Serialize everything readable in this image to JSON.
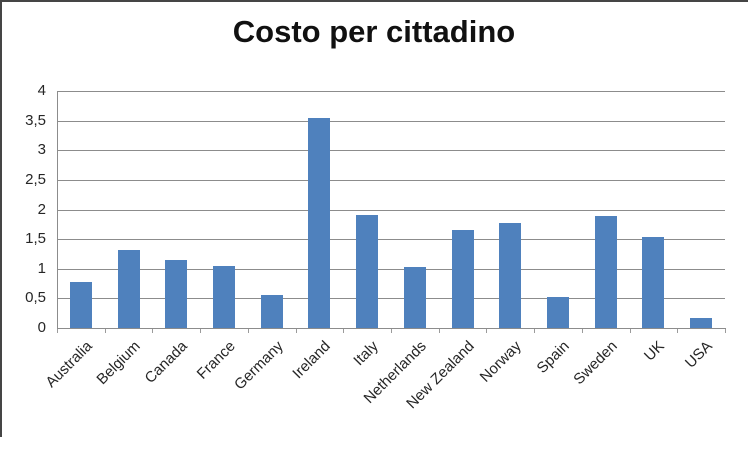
{
  "chart_data": {
    "type": "bar",
    "title": "Costo per cittadino",
    "xlabel": "",
    "ylabel": "",
    "categories": [
      "Australia",
      "Belgium",
      "Canada",
      "France",
      "Germany",
      "Ireland",
      "Italy",
      "Netherlands",
      "New Zealand",
      "Norway",
      "Spain",
      "Sweden",
      "UK",
      "USA"
    ],
    "values": [
      0.77,
      1.32,
      1.15,
      1.05,
      0.56,
      3.54,
      1.91,
      1.03,
      1.65,
      1.77,
      0.52,
      1.89,
      1.53,
      0.17
    ],
    "ylim": [
      0,
      4
    ],
    "ytick_step": 0.5,
    "ytick_labels": [
      "0",
      "0,5",
      "1",
      "1,5",
      "2",
      "2,5",
      "3",
      "3,5",
      "4"
    ],
    "decimal_separator": ",",
    "grid": true,
    "legend": false,
    "bar_color": "#4f81bd",
    "gridline_color": "#8c8c8c",
    "label_color": "#262626",
    "title_color": "#111111",
    "x_label_rotation_deg": -45
  }
}
